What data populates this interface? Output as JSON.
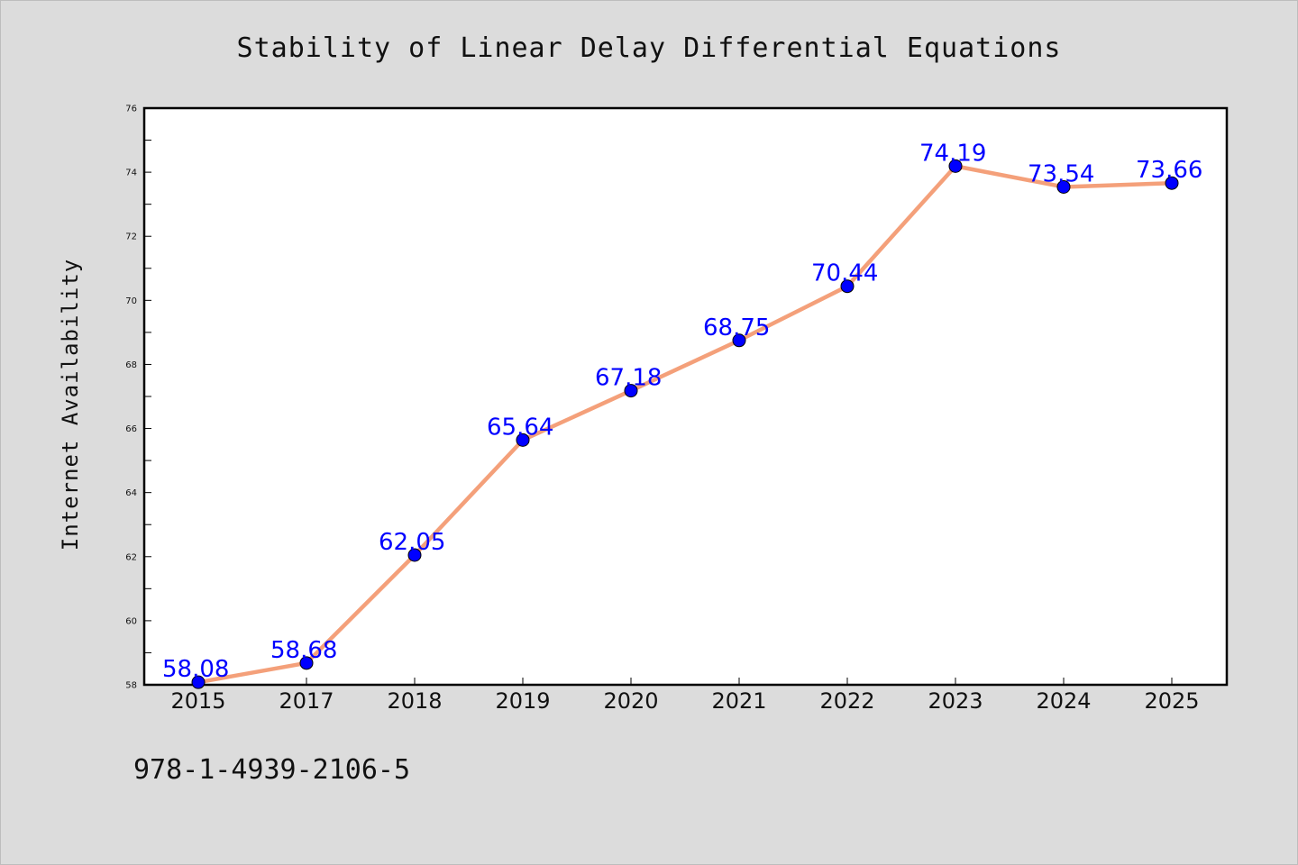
{
  "chart_data": {
    "type": "line",
    "title": "Stability of Linear Delay Differential Equations",
    "xlabel": "",
    "ylabel": "Internet Availability",
    "categories": [
      "2015",
      "2017",
      "2018",
      "2019",
      "2020",
      "2021",
      "2022",
      "2023",
      "2024",
      "2025"
    ],
    "series": [
      {
        "values": [
          58.08,
          58.68,
          62.05,
          65.64,
          67.18,
          68.75,
          70.44,
          74.19,
          73.54,
          73.66
        ],
        "data_labels": [
          "58.08",
          "58.68",
          "62.05",
          "65.64",
          "67.18",
          "68.75",
          "70.44",
          "74.19",
          "73.54",
          "73.66"
        ],
        "line_color": "#f4a07a",
        "marker_color": "#0000ff"
      }
    ],
    "ylim": [
      58,
      76
    ],
    "yticks": [
      "58",
      "60",
      "62",
      "64",
      "66",
      "68",
      "70",
      "72",
      "74",
      "76"
    ],
    "grid": false,
    "legend": "none"
  },
  "footer_text": "978-1-4939-2106-5"
}
